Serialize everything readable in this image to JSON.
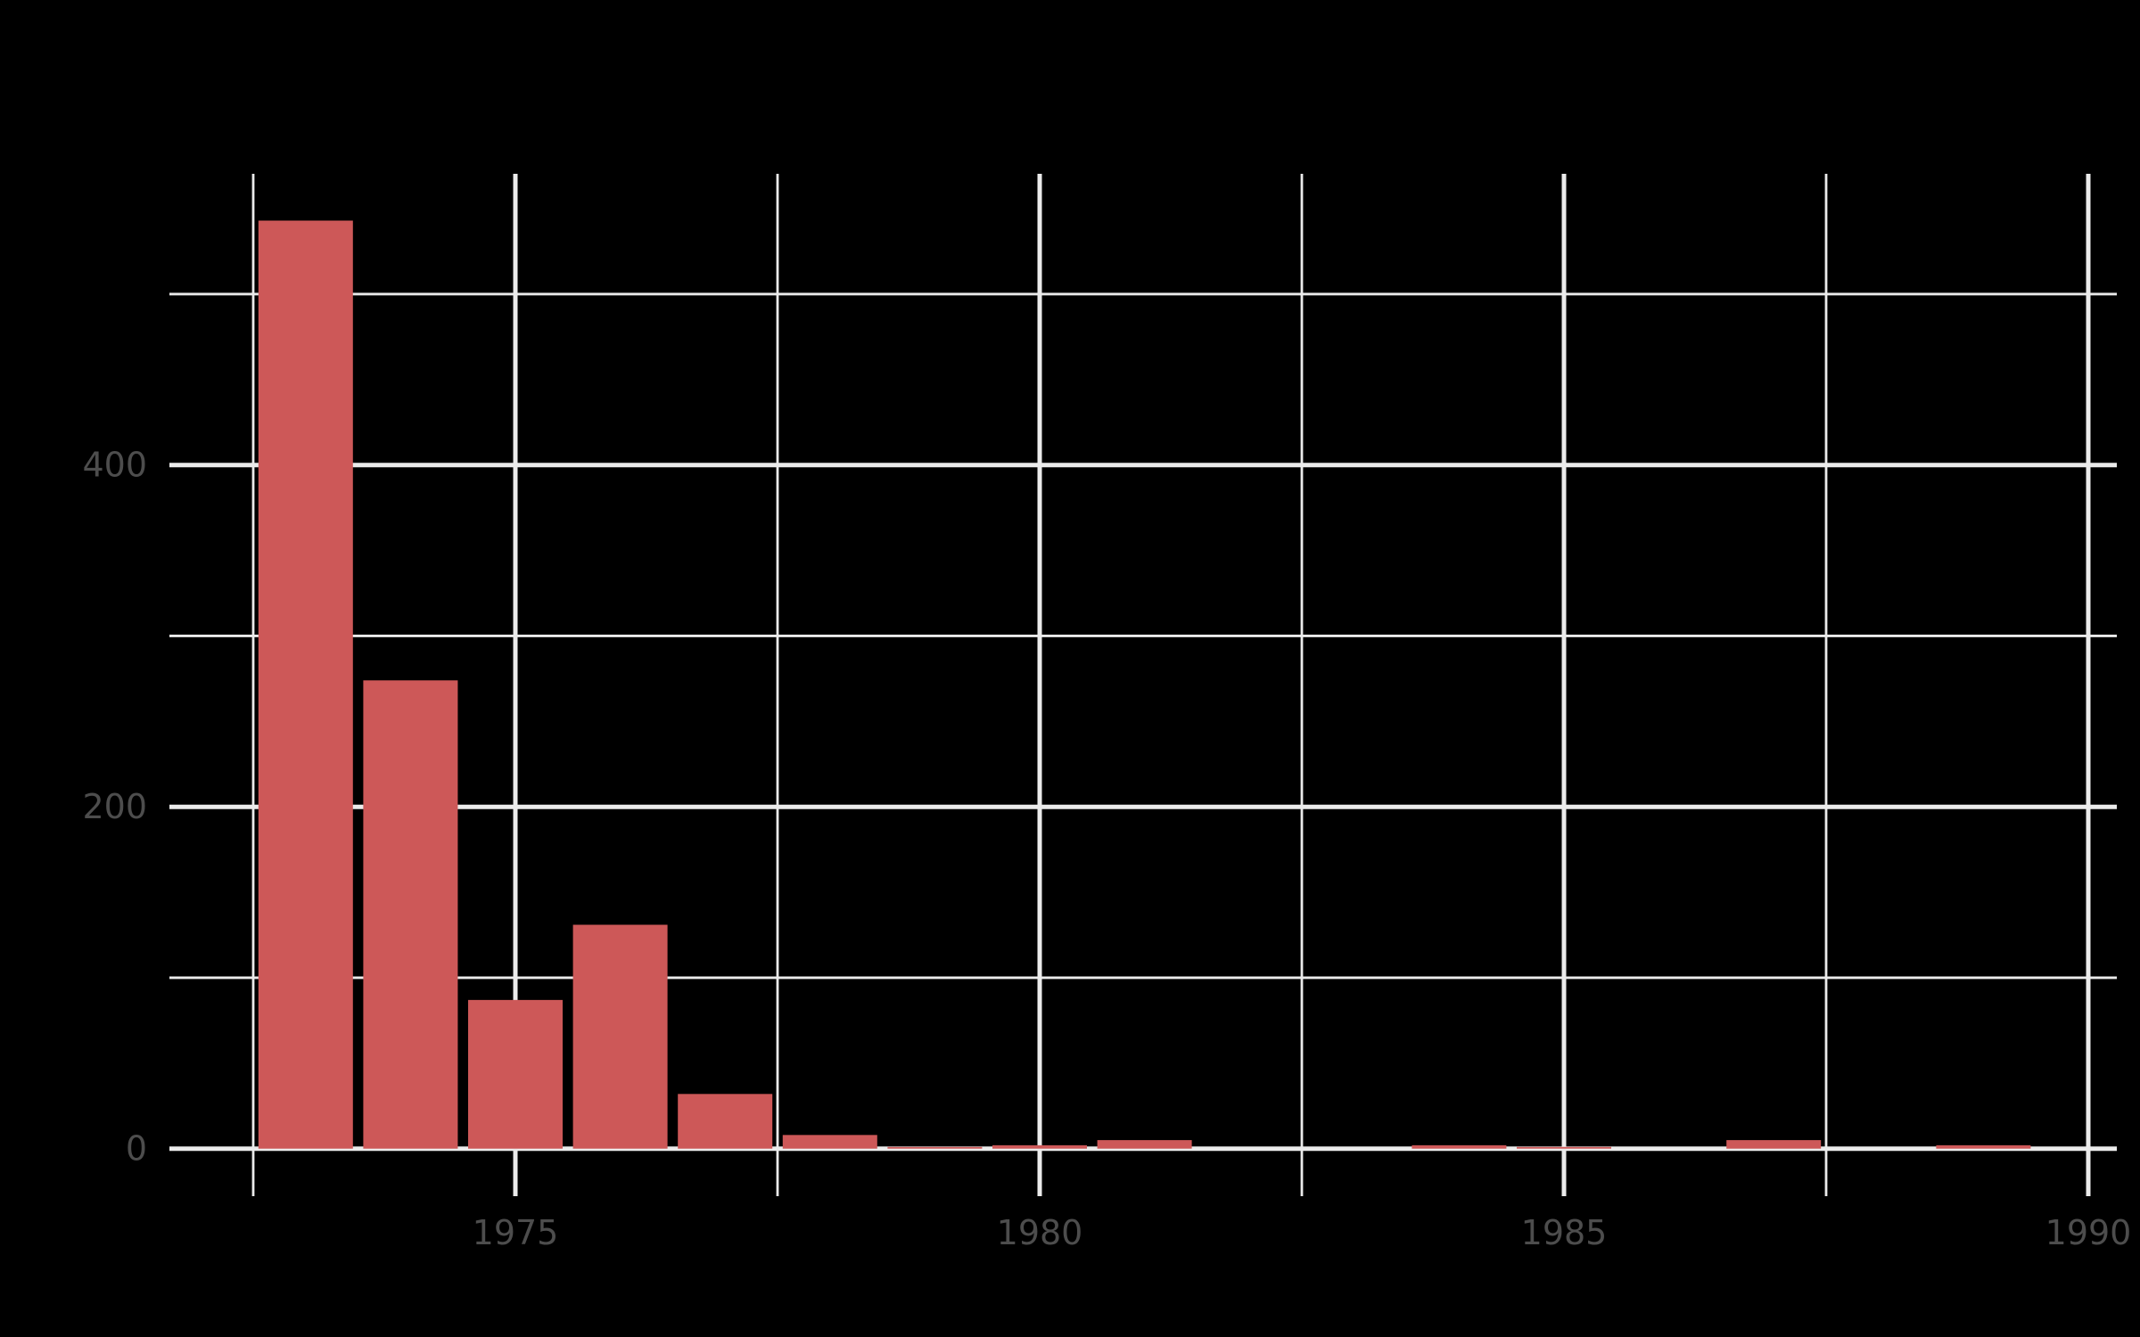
{
  "chart_data": {
    "type": "bar",
    "title": "",
    "xlabel": "",
    "ylabel": "",
    "categories": [
      1973,
      1974,
      1975,
      1976,
      1977,
      1978,
      1979,
      1980,
      1981,
      1984,
      1985,
      1987,
      1989
    ],
    "values": [
      543,
      274,
      87,
      131,
      32,
      8,
      1,
      2,
      5,
      2,
      1,
      5,
      2
    ],
    "xlim": [
      1972.5,
      1990.3
    ],
    "ylim": [
      0,
      570
    ],
    "x_ticks": [
      1975,
      1980,
      1985,
      1990
    ],
    "x_tick_labels": [
      "1975",
      "1980",
      "1985",
      "1990"
    ],
    "y_ticks": [
      0,
      200,
      400
    ],
    "y_tick_labels": [
      "0",
      "200",
      "400"
    ],
    "x_minor_gridlines": [
      1972.5,
      1977.5,
      1982.5,
      1987.5
    ],
    "y_minor_gridlines": [
      100,
      300,
      500
    ],
    "grid": true,
    "legend": null,
    "colors": {
      "bar": "#cd5858",
      "gridline": "#ebebeb",
      "background": "#000000",
      "tick_label": "#4d4d4d"
    }
  }
}
